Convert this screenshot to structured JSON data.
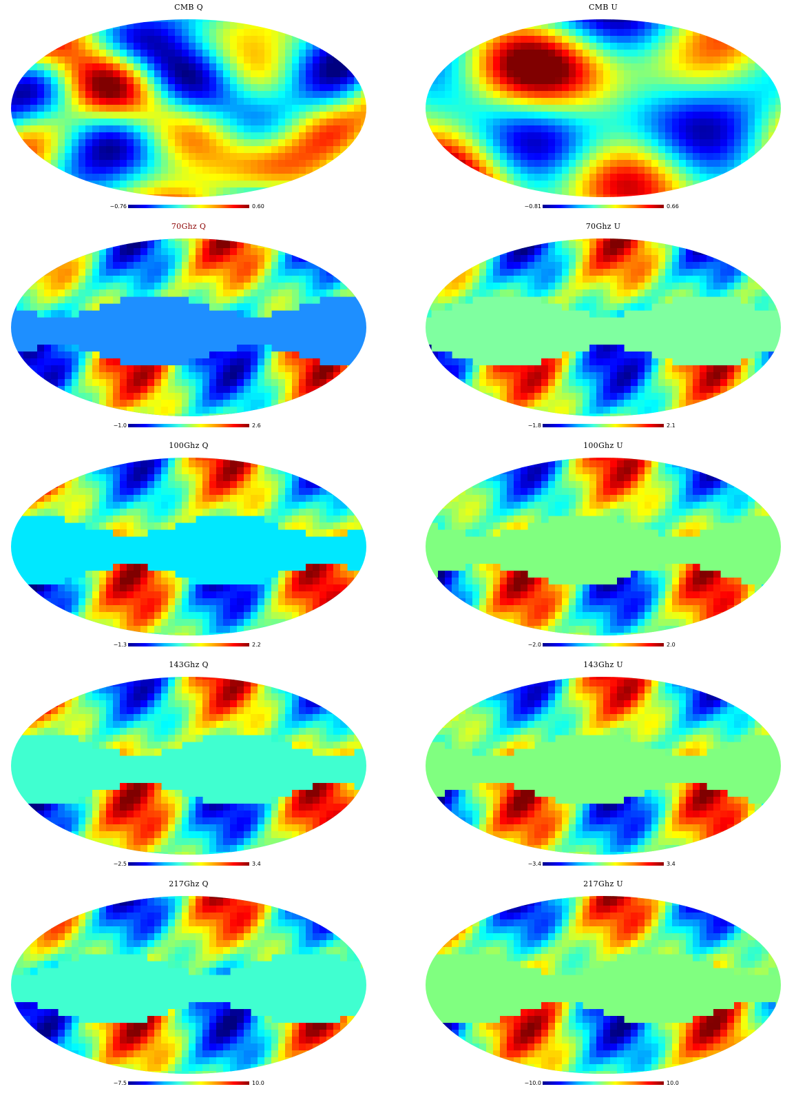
{
  "panels": [
    {
      "title": "CMB Q",
      "min": "−0.76",
      "max": "0.60",
      "accent": false,
      "style": "cmb",
      "seed": 11,
      "background": "#ffffff"
    },
    {
      "title": "CMB U",
      "min": "−0.81",
      "max": "0.66",
      "accent": false,
      "style": "cmb",
      "seed": 27,
      "background": "#ffffff"
    },
    {
      "title": "70Ghz Q",
      "min": "−1.0",
      "max": "2.6",
      "accent": true,
      "style": "fg-q",
      "seed": 3,
      "background": "#1e8fff"
    },
    {
      "title": "70Ghz U",
      "min": "−1.8",
      "max": "2.1",
      "accent": false,
      "style": "fg-u",
      "seed": 5,
      "background": "#7fffa0"
    },
    {
      "title": "100Ghz Q",
      "min": "−1.3",
      "max": "2.2",
      "accent": false,
      "style": "fg-q",
      "seed": 7,
      "background": "#00e8ff"
    },
    {
      "title": "100Ghz U",
      "min": "−2.0",
      "max": "2.0",
      "accent": false,
      "style": "fg-u",
      "seed": 9,
      "background": "#80ff80"
    },
    {
      "title": "143Ghz Q",
      "min": "−2.5",
      "max": "3.4",
      "accent": false,
      "style": "fg-q",
      "seed": 13,
      "background": "#40ffd0"
    },
    {
      "title": "143Ghz U",
      "min": "−3.4",
      "max": "3.4",
      "accent": false,
      "style": "fg-u",
      "seed": 15,
      "background": "#80ff80"
    },
    {
      "title": "217Ghz Q",
      "min": "−7.5",
      "max": "10.0",
      "accent": false,
      "style": "fg-q",
      "seed": 17,
      "background": "#40ffd0"
    },
    {
      "title": "217Ghz U",
      "min": "−10.0",
      "max": "10.0",
      "accent": false,
      "style": "fg-u",
      "seed": 19,
      "background": "#80ff80"
    }
  ]
}
